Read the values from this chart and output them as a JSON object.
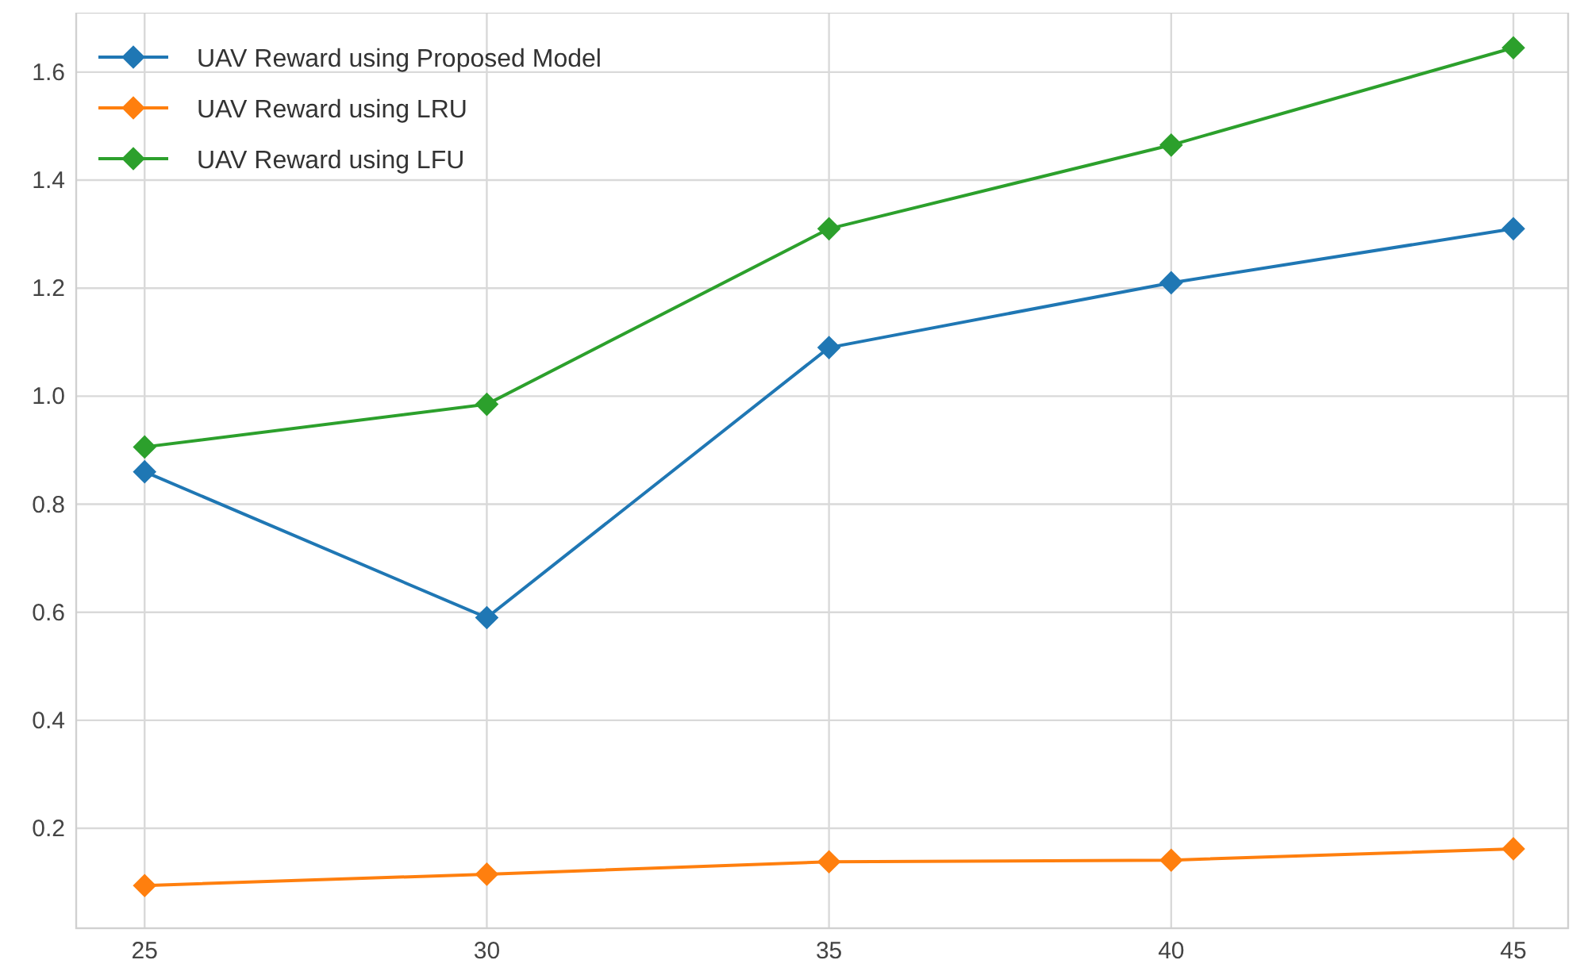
{
  "chart_data": {
    "type": "line",
    "x": [
      25,
      30,
      35,
      40,
      45
    ],
    "series": [
      {
        "name": "UAV Reward using Proposed Model",
        "color": "#1f77b4",
        "values": [
          0.86,
          0.59,
          1.09,
          1.21,
          1.31
        ]
      },
      {
        "name": "UAV Reward using LRU",
        "color": "#ff7f0e",
        "values": [
          0.094,
          0.115,
          0.138,
          0.141,
          0.162
        ]
      },
      {
        "name": "UAV Reward using LFU",
        "color": "#2ca02c",
        "values": [
          0.906,
          0.985,
          1.31,
          1.465,
          1.645
        ]
      }
    ],
    "xlim": [
      24.0,
      45.8
    ],
    "xticks": [
      25,
      30,
      35,
      40,
      45
    ],
    "ylim": [
      0.015,
      1.71
    ],
    "yticks": [
      0.2,
      0.4,
      0.6,
      0.8,
      {
        "value": 1,
        "label": "1.0"
      },
      1.2,
      1.4,
      1.6
    ],
    "grid": true,
    "legend": "top left",
    "marker": "diamond",
    "line_style": "solid"
  }
}
